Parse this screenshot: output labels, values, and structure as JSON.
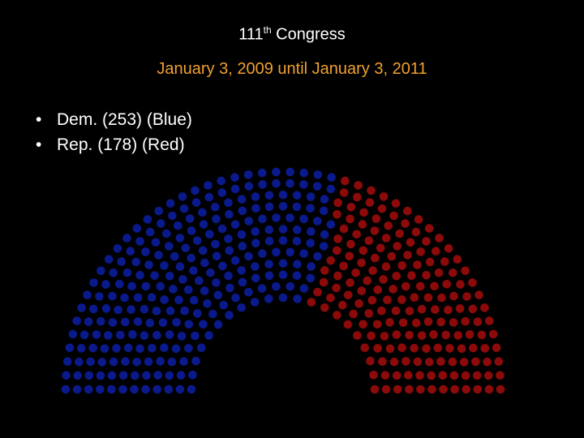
{
  "title": {
    "number": "111",
    "suffix": "th",
    "rest": " Congress"
  },
  "subtitle": "January 3, 2009 until January 3, 2011",
  "legend": [
    {
      "text": "Dem. (253) (Blue)"
    },
    {
      "text": "Rep. (178)  (Red)"
    }
  ],
  "colors": {
    "background": "#000000",
    "title": "#ffffff",
    "subtitle": "#f0a030",
    "democrat": "#0a1a8c",
    "republican": "#8c0a0a"
  },
  "chart_data": {
    "type": "parliament-hemicycle",
    "series": [
      {
        "name": "Dem.",
        "value": 253,
        "color": "#0a1a8c"
      },
      {
        "name": "Rep.",
        "value": 178,
        "color": "#8c0a0a"
      }
    ],
    "total_seats": 431
  }
}
